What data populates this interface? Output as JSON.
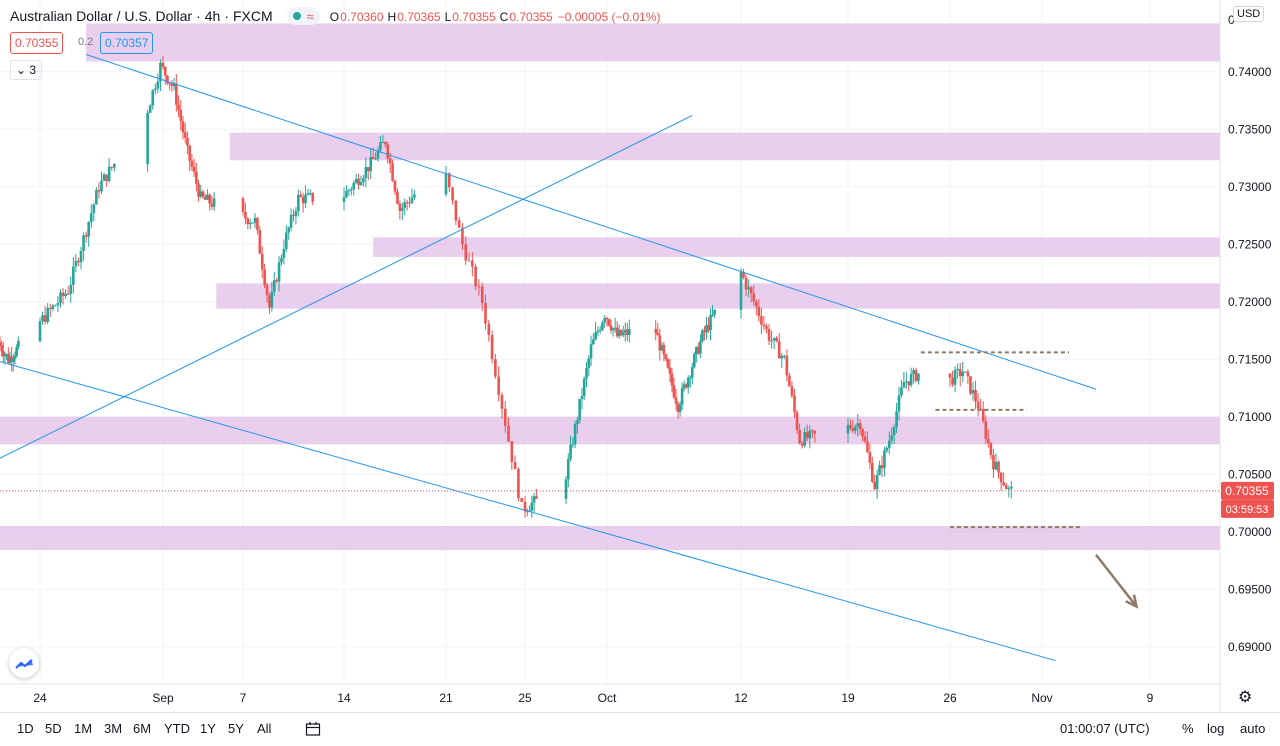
{
  "header": {
    "title": "Australian Dollar / U.S. Dollar",
    "interval": "4h",
    "source": "FXCM",
    "ohlc": [
      {
        "label": "O",
        "value": "0.70360"
      },
      {
        "label": "H",
        "value": "0.70365"
      },
      {
        "label": "L",
        "value": "0.70355"
      },
      {
        "label": "C",
        "value": "0.70355"
      },
      {
        "label": "",
        "value": "−0.00005 (−0.01%)"
      }
    ],
    "sell_price": "0.70355",
    "spread": "0.2",
    "buy_price": "0.70357",
    "indicator_count": "3",
    "currency": "USD"
  },
  "colors": {
    "up": "#26a69a",
    "down": "#ef5350",
    "zone": "#e1bee7",
    "trendline": "#2196f3",
    "level": "#8d7b65",
    "arrow": "#8d7b65"
  },
  "chart_data": {
    "type": "candlestick",
    "y_axis": {
      "min": 0.6885,
      "max": 0.7445,
      "ticks": [
        "0.74000",
        "0.73500",
        "0.73000",
        "0.72500",
        "0.72000",
        "0.71500",
        "0.71000",
        "0.70500",
        "0.70000",
        "0.69500",
        "0.69000"
      ],
      "top_label": "0"
    },
    "x_axis": {
      "ticks": [
        {
          "label": "24",
          "date": "2020-08-24"
        },
        {
          "label": "Sep",
          "date": "2020-09-01"
        },
        {
          "label": "7",
          "date": "2020-09-07"
        },
        {
          "label": "14",
          "date": "2020-09-14"
        },
        {
          "label": "21",
          "date": "2020-09-21"
        },
        {
          "label": "25",
          "date": "2020-09-25"
        },
        {
          "label": "Oct",
          "date": "2020-10-01"
        },
        {
          "label": "12",
          "date": "2020-10-12"
        },
        {
          "label": "19",
          "date": "2020-10-19"
        },
        {
          "label": "26",
          "date": "2020-10-26"
        },
        {
          "label": "Nov",
          "date": "2020-11-01"
        },
        {
          "label": "9",
          "date": "2020-11-09"
        }
      ]
    },
    "price_path": [
      [
        "2020-08-20",
        0.7165
      ],
      [
        "2020-08-21",
        0.715
      ],
      [
        "2020-08-24",
        0.718
      ],
      [
        "2020-08-26",
        0.721
      ],
      [
        "2020-08-28",
        0.73
      ],
      [
        "2020-08-31",
        0.736
      ],
      [
        "2020-09-01",
        0.7405
      ],
      [
        "2020-09-02",
        0.7385
      ],
      [
        "2020-09-03",
        0.733
      ],
      [
        "2020-09-04",
        0.729
      ],
      [
        "2020-09-07",
        0.7275
      ],
      [
        "2020-09-08",
        0.727
      ],
      [
        "2020-09-09",
        0.7195
      ],
      [
        "2020-09-10",
        0.725
      ],
      [
        "2020-09-11",
        0.729
      ],
      [
        "2020-09-14",
        0.729
      ],
      [
        "2020-09-16",
        0.732
      ],
      [
        "2020-09-17",
        0.734
      ],
      [
        "2020-09-18",
        0.728
      ],
      [
        "2020-09-21",
        0.732
      ],
      [
        "2020-09-22",
        0.725
      ],
      [
        "2020-09-23",
        0.72
      ],
      [
        "2020-09-24",
        0.711
      ],
      [
        "2020-09-25",
        0.702
      ],
      [
        "2020-09-28",
        0.704
      ],
      [
        "2020-09-29",
        0.71
      ],
      [
        "2020-09-30",
        0.716
      ],
      [
        "2020-10-01",
        0.719
      ],
      [
        "2020-10-02",
        0.717
      ],
      [
        "2020-10-05",
        0.718
      ],
      [
        "2020-10-07",
        0.711
      ],
      [
        "2020-10-08",
        0.714
      ],
      [
        "2020-10-09",
        0.717
      ],
      [
        "2020-10-12",
        0.723
      ],
      [
        "2020-10-13",
        0.72
      ],
      [
        "2020-10-14",
        0.717
      ],
      [
        "2020-10-15",
        0.715
      ],
      [
        "2020-10-16",
        0.708
      ],
      [
        "2020-10-19",
        0.709
      ],
      [
        "2020-10-20",
        0.7095
      ],
      [
        "2020-10-21",
        0.704
      ],
      [
        "2020-10-22",
        0.708
      ],
      [
        "2020-10-23",
        0.713
      ],
      [
        "2020-10-25",
        0.7145
      ],
      [
        "2020-10-26",
        0.713
      ],
      [
        "2020-10-27",
        0.714
      ],
      [
        "2020-10-28",
        0.711
      ],
      [
        "2020-10-29",
        0.706
      ],
      [
        "2020-10-30",
        0.70355
      ]
    ],
    "last_price": "0.70355",
    "countdown": "03:59:53",
    "zones": [
      {
        "from": 0.7409,
        "to": 0.7442,
        "start": "2020-08-27"
      },
      {
        "from": 0.7323,
        "to": 0.7347,
        "start": "2020-09-06"
      },
      {
        "from": 0.7239,
        "to": 0.7256,
        "start": "2020-09-16"
      },
      {
        "from": 0.7194,
        "to": 0.7216,
        "start": "2020-09-05"
      },
      {
        "from": 0.7076,
        "to": 0.71,
        "start": "2020-08-20"
      },
      {
        "from": 0.6984,
        "to": 0.7005,
        "start": "2020-08-20"
      }
    ],
    "trendlines": [
      {
        "from": [
          "2020-08-27",
          0.7415
        ],
        "to": [
          "2020-11-05",
          0.7124
        ]
      },
      {
        "from": [
          "2020-08-20",
          0.7148
        ],
        "to": [
          "2020-11-02",
          0.6888
        ]
      },
      {
        "from": [
          "2020-08-20",
          0.7064
        ],
        "to": [
          "2020-10-08",
          0.7362
        ]
      }
    ],
    "levels": [
      {
        "price": 0.7156,
        "from": "2020-10-24",
        "to": "2020-11-03"
      },
      {
        "price": 0.7106,
        "from": "2020-10-25",
        "to": "2020-10-31"
      },
      {
        "price": 0.7004,
        "from": "2020-10-26",
        "to": "2020-11-04"
      }
    ],
    "projection_arrow": {
      "from": [
        "2020-11-05",
        0.698
      ],
      "to": [
        "2020-11-08",
        0.6935
      ]
    }
  },
  "bottom_bar": {
    "timeframes": [
      "1D",
      "5D",
      "1M",
      "3M",
      "6M",
      "YTD",
      "1Y",
      "5Y",
      "All"
    ],
    "clock": "01:00:07 (UTC)",
    "percent": "%",
    "log": "log",
    "auto": "auto"
  }
}
